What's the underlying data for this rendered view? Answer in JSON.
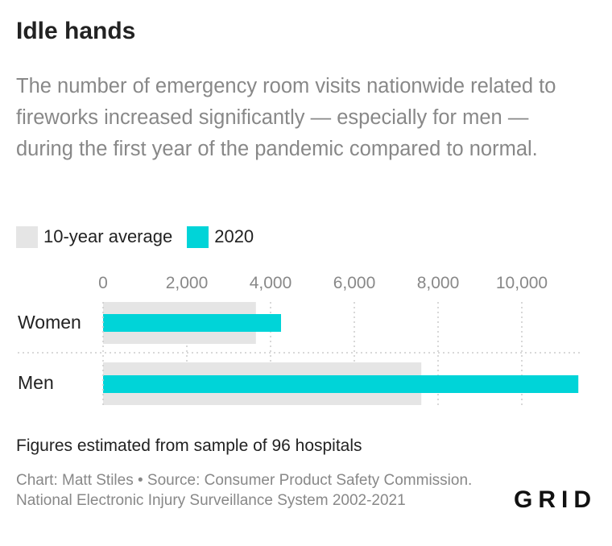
{
  "header": {
    "title": "Idle hands",
    "subtitle": "The number of emergency room visits nationwide related to fireworks increased significantly — especially for men — during the first year of the pandemic compared to normal."
  },
  "legend": {
    "items": [
      {
        "label": "10-year average",
        "color": "#e5e5e5"
      },
      {
        "label": "2020",
        "color": "#00d4d8"
      }
    ]
  },
  "chart_data": {
    "type": "bar",
    "orientation": "horizontal",
    "categories": [
      "Women",
      "Men"
    ],
    "series": [
      {
        "name": "10-year average",
        "color": "#e5e5e5",
        "values": [
          3650,
          7600
        ]
      },
      {
        "name": "2020",
        "color": "#00d4d8",
        "values": [
          4250,
          11350
        ]
      }
    ],
    "xlim": [
      0,
      11400
    ],
    "ticks": [
      0,
      2000,
      4000,
      6000,
      8000,
      10000
    ],
    "tick_labels": [
      "0",
      "2,000",
      "4,000",
      "6,000",
      "8,000",
      "10,000"
    ],
    "grid": true,
    "legend_position": "top-left"
  },
  "footer": {
    "note": "Figures estimated from sample of 96 hospitals",
    "source": "Chart: Matt Stiles • Source: Consumer Product Safety Commission. National Electronic Injury Surveillance System 2002-2021",
    "logo_text": "GRID"
  }
}
